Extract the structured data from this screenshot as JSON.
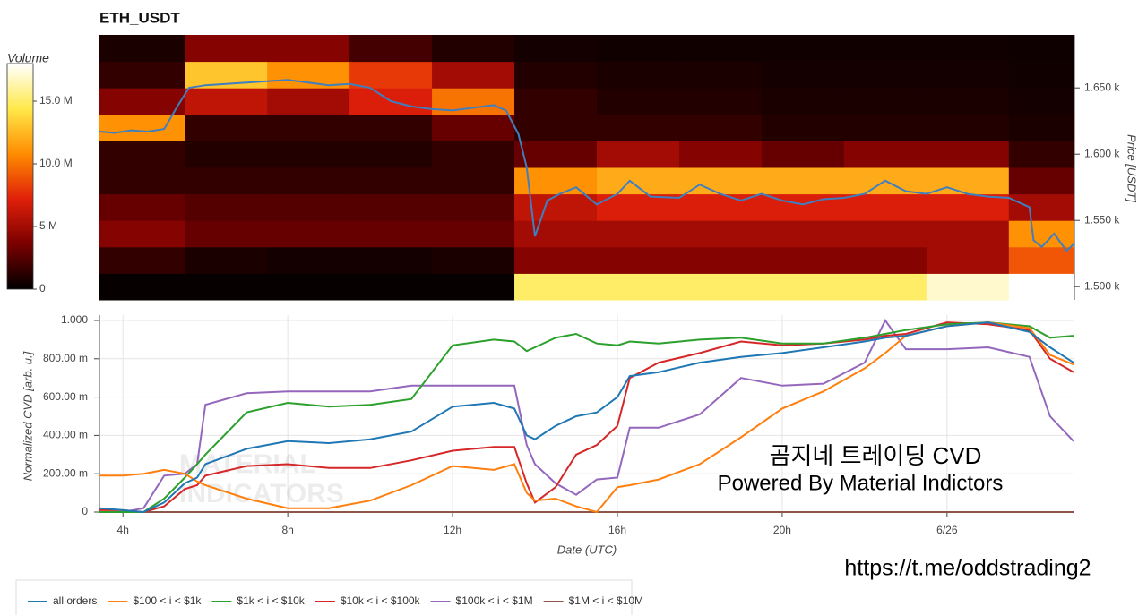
{
  "chart_data": [
    {
      "type": "heatmap",
      "title": "ETH_USDT",
      "colorbar_label": "Volume",
      "ylabel": "Price [USDT]",
      "xlim": [
        3.43,
        27.07
      ],
      "ylim": [
        1490,
        1690
      ],
      "yticks": [
        {
          "value": 1500,
          "label": "1.500 k"
        },
        {
          "value": 1550,
          "label": "1.550 k"
        },
        {
          "value": 1600,
          "label": "1.600 k"
        },
        {
          "value": 1650,
          "label": "1.650 k"
        }
      ],
      "clim": [
        0,
        18000000
      ],
      "cticks": [
        0,
        {
          "value": 5000000,
          "label": "5 M"
        },
        {
          "value": 10000000,
          "label": "10.0 M"
        },
        {
          "value": 15000000,
          "label": "15.0 M"
        }
      ],
      "colormap": [
        "#000000",
        "#7a0000",
        "#e0200a",
        "#ff8c00",
        "#ffe94a",
        "#ffffff"
      ],
      "x_bins": [
        3.43,
        5.5,
        7.5,
        9.5,
        11.5,
        13.5,
        15.5,
        17.5,
        19.5,
        21.5,
        23.5,
        25.5,
        27.07
      ],
      "y_bins": [
        1490,
        1510,
        1530,
        1550,
        1570,
        1590,
        1610,
        1630,
        1650,
        1670,
        1690
      ],
      "z": [
        [
          200000,
          200000,
          200000,
          200000,
          200000,
          15000000,
          15000000,
          15000000,
          15000000,
          15000000,
          17000000,
          18000000
        ],
        [
          1500000,
          800000,
          600000,
          600000,
          800000,
          4000000,
          4000000,
          4000000,
          4000000,
          4000000,
          5000000,
          9000000
        ],
        [
          4000000,
          3000000,
          3000000,
          3000000,
          3000000,
          5000000,
          5000000,
          5000000,
          5000000,
          5000000,
          5000000,
          11000000
        ],
        [
          3000000,
          2500000,
          2500000,
          2500000,
          2500000,
          6000000,
          7000000,
          7000000,
          7000000,
          7000000,
          7000000,
          5000000
        ],
        [
          1500000,
          1500000,
          1500000,
          1500000,
          1500000,
          11000000,
          12000000,
          12000000,
          12000000,
          12000000,
          12000000,
          3000000
        ],
        [
          1500000,
          1000000,
          1000000,
          1000000,
          1500000,
          3000000,
          5000000,
          4000000,
          3000000,
          4000000,
          4000000,
          1500000
        ],
        [
          11000000,
          1500000,
          1500000,
          1500000,
          3000000,
          1500000,
          1500000,
          1500000,
          1000000,
          1000000,
          1000000,
          800000
        ],
        [
          4000000,
          6000000,
          5000000,
          7000000,
          10000000,
          1500000,
          1000000,
          1000000,
          800000,
          800000,
          800000,
          600000
        ],
        [
          1500000,
          13000000,
          11000000,
          8000000,
          5000000,
          1000000,
          800000,
          800000,
          600000,
          600000,
          600000,
          500000
        ],
        [
          800000,
          4000000,
          4000000,
          2000000,
          1000000,
          600000,
          500000,
          500000,
          500000,
          500000,
          500000,
          400000
        ]
      ],
      "price_line": {
        "color": "#3f7fbf",
        "x": [
          3.43,
          3.8,
          4.2,
          4.6,
          5,
          5.3,
          5.6,
          6,
          6.5,
          7,
          7.5,
          8,
          8.5,
          9,
          9.5,
          10,
          10.5,
          11,
          11.5,
          12,
          12.5,
          13,
          13.3,
          13.6,
          13.8,
          14,
          14.3,
          14.6,
          15,
          15.5,
          16,
          16.3,
          16.8,
          17.5,
          18,
          18.5,
          19,
          19.5,
          20,
          20.5,
          21,
          21.5,
          22,
          22.5,
          23,
          23.5,
          24,
          24.5,
          25,
          25.5,
          26,
          26.1,
          26.3,
          26.6,
          26.9,
          27.07
        ],
        "values": [
          1617,
          1616,
          1618,
          1617,
          1619,
          1635,
          1650,
          1652,
          1653,
          1654,
          1655,
          1656,
          1654,
          1652,
          1653,
          1650,
          1640,
          1636,
          1634,
          1633,
          1635,
          1637,
          1633,
          1615,
          1590,
          1538,
          1565,
          1570,
          1575,
          1562,
          1570,
          1580,
          1568,
          1567,
          1577,
          1570,
          1565,
          1570,
          1565,
          1562,
          1566,
          1567,
          1570,
          1580,
          1572,
          1570,
          1575,
          1570,
          1568,
          1567,
          1560,
          1535,
          1530,
          1540,
          1527,
          1532
        ]
      }
    },
    {
      "type": "line",
      "xlabel": "Date (UTC)",
      "ylabel": "Normalized CVD [arb. u.]",
      "grid": true,
      "legend": "bottom",
      "xlim": [
        3.43,
        27.07
      ],
      "ylim": [
        0,
        1.028
      ],
      "xticks": [
        {
          "value": 4,
          "label": "4h"
        },
        {
          "value": 8,
          "label": "8h"
        },
        {
          "value": 12,
          "label": "12h"
        },
        {
          "value": 16,
          "label": "16h"
        },
        {
          "value": 20,
          "label": "20h"
        },
        {
          "value": 24,
          "label": "6/26"
        }
      ],
      "yticks": [
        0,
        {
          "value": 0.2,
          "label": "200.00 m"
        },
        {
          "value": 0.4,
          "label": "400.00 m"
        },
        {
          "value": 0.6,
          "label": "600.00 m"
        },
        {
          "value": 0.8,
          "label": "800.00 m"
        },
        {
          "value": 1,
          "label": "1.000"
        }
      ],
      "x": [
        3.43,
        4,
        4.5,
        5,
        5.5,
        5.8,
        6,
        7,
        8,
        9,
        10,
        11,
        12,
        13,
        13.5,
        13.8,
        14,
        14.5,
        15,
        15.5,
        16,
        16.3,
        17,
        18,
        19,
        20,
        21,
        22,
        22.5,
        23,
        24,
        25,
        26,
        26.5,
        27.07
      ],
      "series": [
        {
          "name": "all orders",
          "color": "#1f77b4",
          "values": [
            0.02,
            0.01,
            0,
            0.05,
            0.15,
            0.18,
            0.25,
            0.33,
            0.37,
            0.36,
            0.38,
            0.42,
            0.55,
            0.57,
            0.54,
            0.4,
            0.38,
            0.45,
            0.5,
            0.52,
            0.6,
            0.71,
            0.73,
            0.78,
            0.81,
            0.83,
            0.86,
            0.89,
            0.91,
            0.92,
            0.97,
            0.99,
            0.94,
            0.86,
            0.78
          ]
        },
        {
          "name": "$100 < i < $1k",
          "color": "#ff7f0e",
          "values": [
            0.19,
            0.19,
            0.2,
            0.22,
            0.2,
            0.16,
            0.14,
            0.07,
            0.02,
            0.02,
            0.06,
            0.14,
            0.24,
            0.22,
            0.25,
            0.1,
            0.06,
            0.07,
            0.03,
            0,
            0.13,
            0.14,
            0.17,
            0.25,
            0.39,
            0.54,
            0.63,
            0.75,
            0.83,
            0.92,
            0.97,
            0.99,
            0.96,
            0.82,
            0.77
          ]
        },
        {
          "name": "$1k < i < $10k",
          "color": "#2ca02c",
          "values": [
            0,
            0,
            0,
            0.07,
            0.18,
            0.25,
            0.3,
            0.52,
            0.57,
            0.55,
            0.56,
            0.59,
            0.87,
            0.9,
            0.89,
            0.84,
            0.86,
            0.91,
            0.93,
            0.88,
            0.87,
            0.89,
            0.88,
            0.9,
            0.91,
            0.88,
            0.88,
            0.91,
            0.93,
            0.95,
            0.98,
            0.99,
            0.97,
            0.91,
            0.92
          ]
        },
        {
          "name": "$10k < i < $100k",
          "color": "#d62728",
          "values": [
            0.01,
            0.01,
            0,
            0.03,
            0.12,
            0.14,
            0.19,
            0.24,
            0.25,
            0.23,
            0.23,
            0.27,
            0.32,
            0.34,
            0.34,
            0.15,
            0.05,
            0.13,
            0.3,
            0.35,
            0.45,
            0.7,
            0.78,
            0.83,
            0.89,
            0.87,
            0.88,
            0.9,
            0.92,
            0.93,
            0.99,
            0.98,
            0.95,
            0.8,
            0.73
          ]
        },
        {
          "name": "$100k < i < $1M",
          "color": "#9467bd",
          "values": [
            0,
            0,
            0.02,
            0.19,
            0.2,
            0.25,
            0.56,
            0.62,
            0.63,
            0.63,
            0.63,
            0.66,
            0.66,
            0.66,
            0.66,
            0.35,
            0.25,
            0.15,
            0.09,
            0.17,
            0.18,
            0.44,
            0.44,
            0.51,
            0.7,
            0.66,
            0.67,
            0.78,
            1.0,
            0.85,
            0.85,
            0.86,
            0.81,
            0.5,
            0.37
          ]
        },
        {
          "name": "$1M < i < $10M",
          "color": "#8c564b",
          "values": [
            0,
            0,
            0,
            0,
            0,
            0,
            0,
            0,
            0,
            0,
            0,
            0,
            0,
            0,
            0,
            0,
            0,
            0,
            0,
            0,
            0,
            0,
            0,
            0,
            0,
            0,
            0,
            0,
            0,
            0,
            0,
            0,
            0,
            0,
            0
          ]
        }
      ],
      "watermark": [
        "MATERIAL",
        "INDICATORS"
      ],
      "annotations": [
        "곰지네 트레이딩 CVD",
        "Powered By Material Indictors",
        "https://t.me/oddstrading2"
      ]
    }
  ]
}
